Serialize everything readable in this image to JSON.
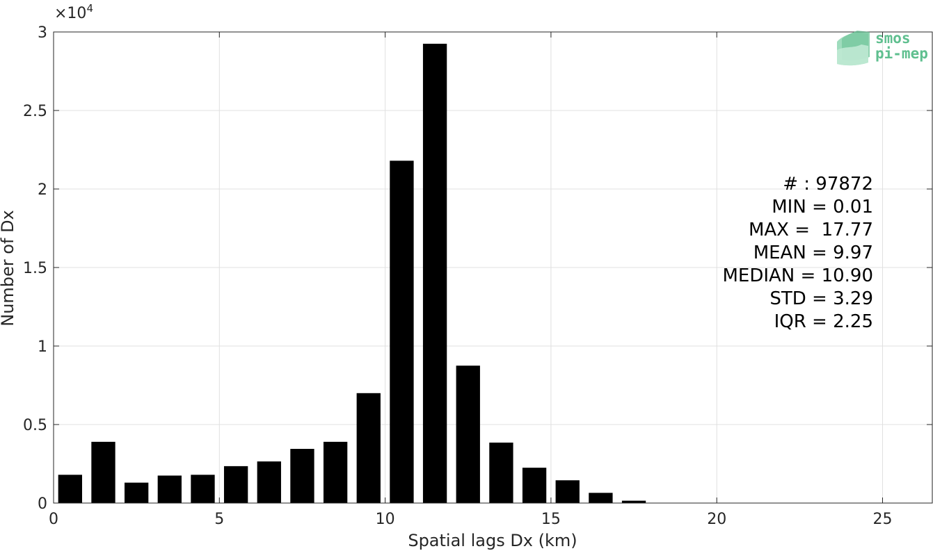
{
  "colors": {
    "bar": "#000000",
    "grid": "#e0e0e0",
    "axis": "#262626",
    "logo": "#5fbf8f"
  },
  "logo": {
    "line1": "smos",
    "line2": "pi-mep"
  },
  "stats": [
    "# : 97872",
    "MIN = 0.01",
    "MAX =  17.77",
    "MEAN = 9.97",
    "MEDIAN = 10.90",
    "STD = 3.29",
    "IQR = 2.25"
  ],
  "chart_data": {
    "type": "bar",
    "title": "",
    "xlabel": "Spatial lags Dx (km)",
    "ylabel": "Number of Dx",
    "y_exponent_base": "×10",
    "y_exponent_power": "4",
    "xlim": [
      0,
      26.5
    ],
    "ylim": [
      0,
      30000
    ],
    "grid": true,
    "xticks": [
      0,
      5,
      10,
      15,
      20,
      25
    ],
    "yticks": [
      0,
      5000,
      10000,
      15000,
      20000,
      25000,
      30000
    ],
    "xtick_labels": [
      "0",
      "5",
      "10",
      "15",
      "20",
      "25"
    ],
    "ytick_labels": [
      "0",
      "0.5",
      "1",
      "1.5",
      "2",
      "2.5",
      "3"
    ],
    "bar_width": 0.72,
    "x": [
      0.5,
      1.5,
      2.5,
      3.5,
      4.5,
      5.5,
      6.5,
      7.5,
      8.5,
      9.5,
      10.5,
      11.5,
      12.5,
      13.5,
      14.5,
      15.5,
      16.5,
      17.5
    ],
    "values": [
      1800,
      3900,
      1300,
      1750,
      1800,
      2350,
      2650,
      3450,
      3900,
      7000,
      21800,
      29250,
      8750,
      3850,
      2250,
      1450,
      650,
      150
    ]
  }
}
